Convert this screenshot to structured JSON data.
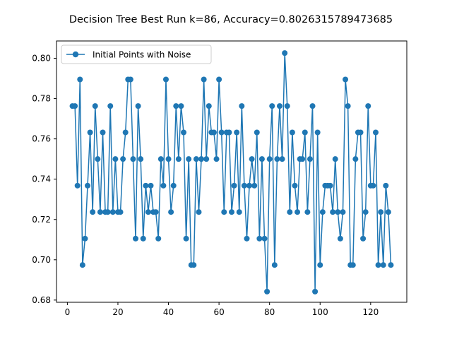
{
  "chart_data": {
    "type": "line",
    "title": "Decision Tree Best Run k=86, Accuracy=0.8026315789473685",
    "xlabel": "",
    "ylabel": "",
    "xlim": [
      -4.3,
      134.3
    ],
    "ylim": [
      0.6789,
      0.8086
    ],
    "xticks": [
      0,
      20,
      40,
      60,
      80,
      100,
      120
    ],
    "yticks": [
      0.68,
      0.7,
      0.72,
      0.74,
      0.76,
      0.78,
      0.8
    ],
    "ytick_labels": [
      "0.68",
      "0.70",
      "0.72",
      "0.74",
      "0.76",
      "0.78",
      "0.80"
    ],
    "grid": false,
    "legend_position": "top-left",
    "series": [
      {
        "name": "Initial Points with Noise",
        "color": "#1f77b4",
        "marker": "circle",
        "x": [
          2,
          3,
          4,
          5,
          6,
          7,
          8,
          9,
          10,
          11,
          12,
          13,
          14,
          15,
          16,
          17,
          18,
          19,
          20,
          21,
          22,
          23,
          24,
          25,
          26,
          27,
          28,
          29,
          30,
          31,
          32,
          33,
          34,
          35,
          36,
          37,
          38,
          39,
          40,
          41,
          42,
          43,
          44,
          45,
          46,
          47,
          48,
          49,
          50,
          51,
          52,
          53,
          54,
          55,
          56,
          57,
          58,
          59,
          60,
          61,
          62,
          63,
          64,
          65,
          66,
          67,
          68,
          69,
          70,
          71,
          72,
          73,
          74,
          75,
          76,
          77,
          78,
          79,
          80,
          81,
          82,
          83,
          84,
          85,
          86,
          87,
          88,
          89,
          90,
          91,
          92,
          93,
          94,
          95,
          96,
          97,
          98,
          99,
          100,
          101,
          102,
          103,
          104,
          105,
          106,
          107,
          108,
          109,
          110,
          111,
          112,
          113,
          114,
          115,
          116,
          117,
          118,
          119,
          120,
          121,
          122,
          123,
          124,
          125,
          126,
          127,
          128
        ],
        "y": [
          0.7763,
          0.7763,
          0.7368,
          0.7895,
          0.6974,
          0.7105,
          0.7368,
          0.7632,
          0.7237,
          0.7763,
          0.75,
          0.7237,
          0.7632,
          0.7237,
          0.7237,
          0.7763,
          0.7237,
          0.75,
          0.7237,
          0.7237,
          0.75,
          0.7632,
          0.7895,
          0.7895,
          0.75,
          0.7105,
          0.7763,
          0.75,
          0.7105,
          0.7368,
          0.7237,
          0.7368,
          0.7237,
          0.7237,
          0.7105,
          0.75,
          0.7368,
          0.7895,
          0.75,
          0.7237,
          0.7368,
          0.7763,
          0.75,
          0.7763,
          0.7632,
          0.7105,
          0.75,
          0.6974,
          0.6974,
          0.75,
          0.7237,
          0.75,
          0.7895,
          0.75,
          0.7763,
          0.7632,
          0.7632,
          0.75,
          0.7895,
          0.7632,
          0.7237,
          0.7632,
          0.7632,
          0.7237,
          0.7368,
          0.7632,
          0.7237,
          0.7763,
          0.7368,
          0.7105,
          0.7368,
          0.75,
          0.7368,
          0.7632,
          0.7105,
          0.75,
          0.7105,
          0.6842,
          0.75,
          0.7763,
          0.6974,
          0.75,
          0.7763,
          0.75,
          0.8026,
          0.7763,
          0.7237,
          0.7632,
          0.7368,
          0.7237,
          0.75,
          0.75,
          0.7632,
          0.7237,
          0.75,
          0.7763,
          0.6842,
          0.7632,
          0.6974,
          0.7237,
          0.7368,
          0.7368,
          0.7368,
          0.7237,
          0.75,
          0.7237,
          0.7105,
          0.7237,
          0.7895,
          0.7763,
          0.6974,
          0.6974,
          0.75,
          0.7632,
          0.7632,
          0.7105,
          0.7237,
          0.7763,
          0.7368,
          0.7368,
          0.7632,
          0.6974,
          0.7237,
          0.6974,
          0.7368,
          0.7237,
          0.6974
        ]
      }
    ]
  }
}
